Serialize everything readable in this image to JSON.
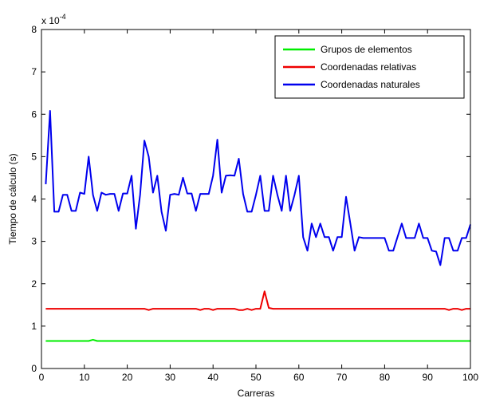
{
  "chart_data": {
    "type": "line",
    "xlabel": "Carreras",
    "ylabel": "Tiempo de cálculo (s)",
    "y_multiplier_label": "x 10",
    "y_multiplier_exponent": "-4",
    "xlim": [
      0,
      100
    ],
    "ylim": [
      0,
      8
    ],
    "xticks": [
      "0",
      "10",
      "20",
      "30",
      "40",
      "50",
      "60",
      "70",
      "80",
      "90",
      "100"
    ],
    "yticks": [
      "0",
      "1",
      "2",
      "3",
      "4",
      "5",
      "6",
      "7",
      "8"
    ],
    "grid": false,
    "legend_position": "top-right",
    "series": [
      {
        "name": "Grupos de elementos",
        "color": "#00ee00",
        "x": [
          1,
          11,
          12,
          13,
          100
        ],
        "y": [
          0.65,
          0.65,
          0.68,
          0.65,
          0.65
        ]
      },
      {
        "name": "Coordenadas relativas",
        "color": "#ee0000",
        "x": [
          1,
          24,
          25,
          26,
          36,
          37,
          38,
          39,
          40,
          41,
          45,
          46,
          47,
          48,
          49,
          50,
          51,
          52,
          53,
          54,
          55,
          56,
          94,
          95,
          96,
          97,
          98,
          99,
          100
        ],
        "y": [
          1.41,
          1.41,
          1.38,
          1.41,
          1.41,
          1.38,
          1.41,
          1.41,
          1.38,
          1.41,
          1.41,
          1.38,
          1.38,
          1.41,
          1.38,
          1.41,
          1.41,
          1.82,
          1.43,
          1.41,
          1.41,
          1.41,
          1.41,
          1.38,
          1.41,
          1.41,
          1.38,
          1.41,
          1.41
        ]
      },
      {
        "name": "Coordenadas naturales",
        "color": "#0000ee",
        "x": [
          1,
          2,
          3,
          4,
          5,
          6,
          7,
          8,
          9,
          10,
          11,
          12,
          13,
          14,
          15,
          16,
          17,
          18,
          19,
          20,
          21,
          22,
          23,
          24,
          25,
          26,
          27,
          28,
          29,
          30,
          31,
          32,
          33,
          34,
          35,
          36,
          37,
          38,
          39,
          40,
          41,
          42,
          43,
          44,
          45,
          46,
          47,
          48,
          49,
          50,
          51,
          52,
          53,
          54,
          55,
          56,
          57,
          58,
          59,
          60,
          61,
          62,
          63,
          64,
          65,
          66,
          67,
          68,
          69,
          70,
          71,
          72,
          73,
          74,
          75,
          76,
          77,
          78,
          79,
          80,
          81,
          82,
          83,
          84,
          85,
          86,
          87,
          88,
          89,
          90,
          91,
          92,
          93,
          94,
          95,
          96,
          97,
          98,
          99,
          100
        ],
        "y": [
          4.35,
          6.08,
          3.7,
          3.7,
          4.1,
          4.1,
          3.72,
          3.72,
          4.15,
          4.12,
          5.0,
          4.1,
          3.72,
          4.15,
          4.1,
          4.12,
          4.12,
          3.72,
          4.13,
          4.13,
          4.55,
          3.3,
          4.1,
          5.38,
          5.0,
          4.15,
          4.55,
          3.7,
          3.25,
          4.1,
          4.12,
          4.1,
          4.5,
          4.13,
          4.13,
          3.72,
          4.12,
          4.12,
          4.12,
          4.55,
          5.4,
          4.15,
          4.55,
          4.56,
          4.55,
          4.95,
          4.12,
          3.7,
          3.7,
          4.1,
          4.55,
          3.72,
          3.72,
          4.55,
          4.1,
          3.72,
          4.55,
          3.72,
          4.1,
          4.55,
          3.1,
          2.78,
          3.42,
          3.1,
          3.42,
          3.1,
          3.1,
          2.78,
          3.1,
          3.1,
          4.05,
          3.42,
          2.78,
          3.1,
          3.08,
          3.08,
          3.08,
          3.08,
          3.08,
          3.08,
          2.78,
          2.78,
          3.1,
          3.42,
          3.08,
          3.08,
          3.08,
          3.42,
          3.08,
          3.08,
          2.78,
          2.76,
          2.44,
          3.08,
          3.08,
          2.78,
          2.78,
          3.08,
          3.08,
          3.4
        ]
      }
    ]
  }
}
